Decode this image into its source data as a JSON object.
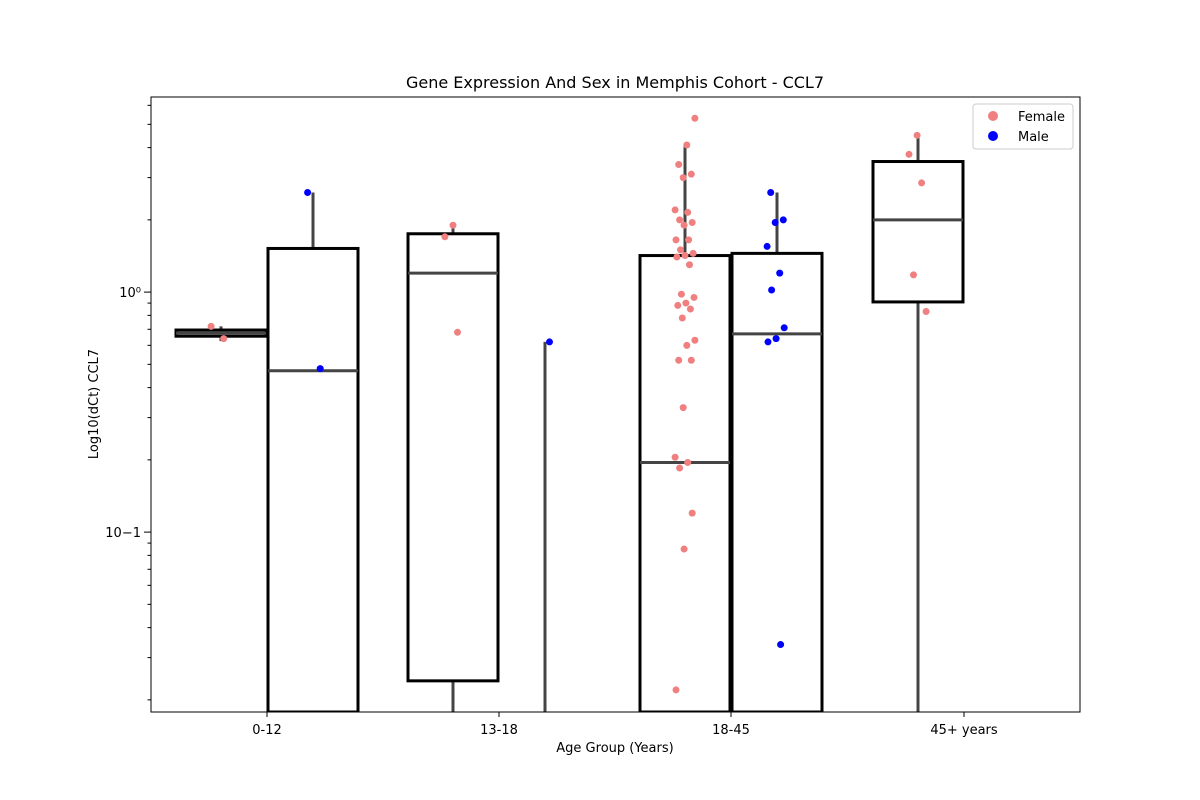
{
  "chart_data": {
    "type": "box",
    "title": "Gene Expression And Sex in Memphis Cohort - CCL7",
    "xlabel": "Age Group (Years)",
    "ylabel": "Log10(dCt) CCL7",
    "yscale": "log",
    "ylim": [
      0.0178,
      6.5
    ],
    "categories": [
      "0-12",
      "13-18",
      "18-45",
      "45+ years"
    ],
    "y_tick_labels": [
      "10−1",
      "10⁰"
    ],
    "y_ticks": [
      0.1,
      1
    ],
    "legend": {
      "placement": "top-right",
      "entries": [
        {
          "name": "Female",
          "color": "#f08080"
        },
        {
          "name": "Male",
          "color": "#0000ff"
        }
      ]
    },
    "series": [
      {
        "name": "Female",
        "color": "#f08080",
        "boxes": [
          {
            "category": "0-12",
            "q1": 0.655,
            "median": 0.675,
            "q3": 0.695,
            "whisker_low": 0.625,
            "whisker_high": 0.72
          },
          {
            "category": "13-18",
            "q1": 0.024,
            "median": 1.2,
            "q3": 1.75,
            "whisker_low": 0.0178,
            "whisker_high": 1.92
          },
          {
            "category": "18-45",
            "q1": 0.0178,
            "median": 0.195,
            "q3": 1.42,
            "whisker_low": 0.0178,
            "whisker_high": 4.1
          },
          {
            "category": "45+ years",
            "q1": 0.91,
            "median": 2.0,
            "q3": 3.5,
            "whisker_low": 0.0178,
            "whisker_high": 4.5
          }
        ],
        "points": [
          {
            "category": "0-12",
            "y": [
              0.72,
              0.64
            ]
          },
          {
            "category": "13-18",
            "y": [
              1.9,
              1.7,
              0.68
            ]
          },
          {
            "category": "18-45",
            "y": [
              5.3,
              4.1,
              3.4,
              3.1,
              3.0,
              2.2,
              2.15,
              2.0,
              1.95,
              1.9,
              1.65,
              1.65,
              1.5,
              1.45,
              1.42,
              1.4,
              1.3,
              0.98,
              0.95,
              0.9,
              0.88,
              0.85,
              0.78,
              0.63,
              0.6,
              0.52,
              0.52,
              0.33,
              0.205,
              0.195,
              0.185,
              0.12,
              0.085,
              0.022
            ]
          },
          {
            "category": "45+ years",
            "y": [
              4.5,
              3.75,
              2.85,
              1.18,
              0.83
            ]
          }
        ]
      },
      {
        "name": "Male",
        "color": "#0000ff",
        "boxes": [
          {
            "category": "0-12",
            "q1": 0.0178,
            "median": 0.47,
            "q3": 1.52,
            "whisker_low": 0.0178,
            "whisker_high": 2.6
          },
          {
            "category": "13-18",
            "q1": null,
            "median": null,
            "q3": null,
            "whisker_low": 0.0178,
            "whisker_high": 0.62
          },
          {
            "category": "18-45",
            "q1": 0.0178,
            "median": 0.67,
            "q3": 1.45,
            "whisker_low": 0.0178,
            "whisker_high": 2.6
          }
        ],
        "points": [
          {
            "category": "0-12",
            "y": [
              2.6,
              0.48
            ]
          },
          {
            "category": "13-18",
            "y": [
              0.62
            ]
          },
          {
            "category": "18-45",
            "y": [
              2.6,
              2.0,
              1.95,
              1.55,
              1.2,
              1.02,
              0.71,
              0.64,
              0.62,
              0.034
            ]
          }
        ]
      }
    ]
  }
}
